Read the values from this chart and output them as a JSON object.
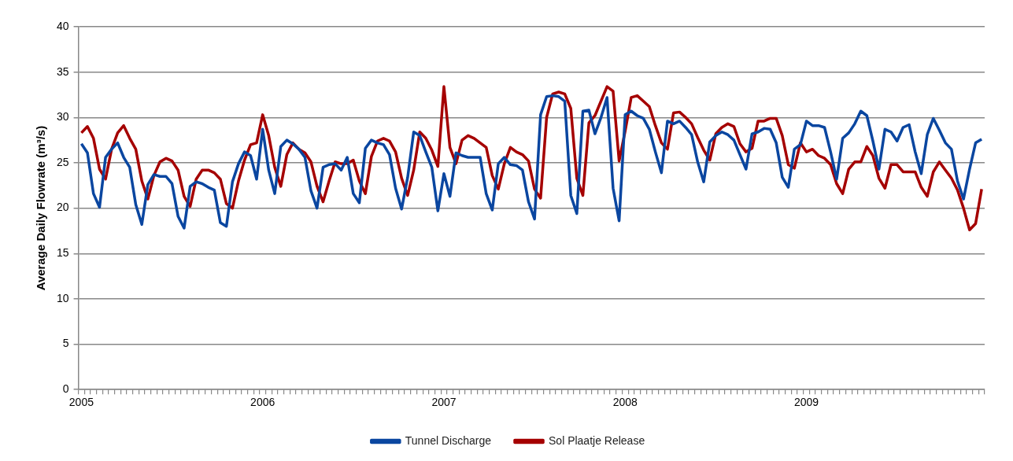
{
  "chart_data": {
    "type": "line",
    "ylabel": "Average Daily Flowrate (m³/s)",
    "ylim": [
      0,
      40
    ],
    "yticks": [
      0,
      5,
      10,
      15,
      20,
      25,
      30,
      35,
      40
    ],
    "grid": "y",
    "legend": "bottom",
    "marker": "none",
    "line_style": "solid",
    "categories": [
      "2005",
      null,
      null,
      null,
      null,
      null,
      null,
      null,
      null,
      null,
      null,
      null,
      null,
      null,
      null,
      null,
      null,
      null,
      null,
      null,
      null,
      null,
      null,
      null,
      null,
      null,
      null,
      null,
      null,
      null,
      "2006",
      null,
      null,
      null,
      null,
      null,
      null,
      null,
      null,
      null,
      null,
      null,
      null,
      null,
      null,
      null,
      null,
      null,
      null,
      null,
      null,
      null,
      null,
      null,
      null,
      null,
      null,
      null,
      null,
      null,
      "2007",
      null,
      null,
      null,
      null,
      null,
      null,
      null,
      null,
      null,
      null,
      null,
      null,
      null,
      null,
      null,
      null,
      null,
      null,
      null,
      null,
      null,
      null,
      null,
      null,
      null,
      null,
      null,
      null,
      null,
      "2008",
      null,
      null,
      null,
      null,
      null,
      null,
      null,
      null,
      null,
      null,
      null,
      null,
      null,
      null,
      null,
      null,
      null,
      null,
      null,
      null,
      null,
      null,
      null,
      null,
      null,
      null,
      null,
      null,
      null,
      "2009",
      null,
      null,
      null,
      null,
      null,
      null,
      null,
      null,
      null,
      null,
      null,
      null,
      null,
      null,
      null,
      null,
      null,
      null,
      null,
      null,
      null,
      null,
      null,
      null,
      null,
      null,
      null,
      null,
      null
    ],
    "series": [
      {
        "name": "Tunnel Discharge",
        "color": "#0a46a0",
        "values": [
          27.1,
          26.1,
          21.6,
          20.1,
          25.6,
          26.5,
          27.2,
          25.6,
          24.5,
          20.4,
          18.2,
          22.6,
          23.7,
          23.5,
          23.5,
          22.7,
          19.1,
          17.8,
          22.4,
          22.9,
          22.7,
          22.3,
          22.0,
          18.4,
          18.0,
          22.9,
          24.9,
          26.2,
          25.8,
          23.2,
          28.7,
          24.2,
          21.6,
          26.8,
          27.5,
          27.1,
          26.5,
          25.6,
          21.9,
          20.0,
          24.5,
          24.8,
          24.9,
          24.2,
          25.6,
          21.6,
          20.6,
          26.6,
          27.5,
          27.2,
          27.0,
          25.9,
          22.2,
          19.9,
          23.4,
          28.4,
          28.0,
          26.2,
          24.5,
          19.7,
          23.8,
          21.3,
          26.1,
          25.8,
          25.6,
          25.6,
          25.6,
          21.6,
          19.8,
          24.9,
          25.6,
          24.8,
          24.7,
          24.2,
          20.7,
          18.8,
          30.3,
          32.3,
          32.4,
          32.3,
          31.8,
          21.4,
          19.4,
          30.7,
          30.8,
          28.2,
          30.0,
          32.2,
          22.2,
          18.6,
          30.3,
          30.7,
          30.2,
          29.9,
          28.7,
          26.2,
          23.9,
          29.6,
          29.3,
          29.6,
          28.9,
          28.1,
          25.1,
          22.9,
          27.3,
          28.0,
          28.4,
          28.1,
          27.5,
          25.9,
          24.3,
          28.2,
          28.4,
          28.8,
          28.7,
          27.2,
          23.4,
          22.3,
          26.5,
          27.0,
          29.6,
          29.1,
          29.1,
          28.9,
          26.2,
          23.2,
          27.7,
          28.3,
          29.3,
          30.7,
          30.2,
          27.4,
          24.3,
          28.7,
          28.4,
          27.4,
          28.9,
          29.2,
          26.2,
          23.8,
          28.1,
          29.9,
          28.6,
          27.2,
          26.5,
          23.0,
          21.0,
          24.3,
          27.2,
          27.6
        ]
      },
      {
        "name": "Sol Plaatje Release",
        "color": "#a50000",
        "values": [
          28.3,
          29.0,
          27.7,
          24.3,
          23.2,
          26.5,
          28.3,
          29.1,
          27.7,
          26.5,
          23.0,
          21.0,
          23.6,
          25.1,
          25.5,
          25.2,
          24.2,
          21.3,
          20.2,
          23.2,
          24.2,
          24.2,
          23.9,
          23.2,
          20.5,
          20.0,
          23.0,
          25.3,
          27.0,
          27.2,
          30.3,
          28.0,
          24.5,
          22.4,
          25.9,
          27.2,
          26.5,
          26.1,
          25.1,
          22.4,
          20.7,
          23.0,
          25.1,
          24.9,
          24.9,
          25.3,
          23.0,
          21.6,
          25.7,
          27.4,
          27.7,
          27.4,
          26.2,
          23.3,
          21.4,
          24.2,
          28.4,
          27.7,
          26.4,
          24.6,
          33.4,
          26.7,
          24.9,
          27.5,
          28.0,
          27.7,
          27.2,
          26.7,
          23.6,
          22.1,
          24.9,
          26.7,
          26.2,
          25.9,
          25.2,
          22.1,
          21.1,
          30.0,
          32.6,
          32.8,
          32.6,
          31.0,
          23.3,
          21.4,
          29.4,
          30.2,
          31.8,
          33.4,
          32.9,
          25.2,
          28.5,
          32.2,
          32.4,
          31.8,
          31.2,
          29.1,
          27.2,
          26.5,
          30.5,
          30.6,
          30.0,
          29.3,
          27.8,
          26.4,
          25.3,
          28.2,
          28.9,
          29.3,
          29.0,
          27.1,
          26.2,
          26.6,
          29.6,
          29.6,
          29.9,
          29.9,
          28.0,
          24.8,
          24.4,
          27.2,
          26.2,
          26.5,
          25.8,
          25.5,
          24.8,
          22.7,
          21.6,
          24.3,
          25.1,
          25.1,
          26.8,
          25.8,
          23.3,
          22.2,
          24.8,
          24.8,
          24.0,
          24.0,
          24.0,
          22.3,
          21.3,
          24.0,
          25.1,
          24.2,
          23.3,
          22.0,
          20.0,
          17.6,
          18.3,
          22.1
        ]
      }
    ]
  }
}
